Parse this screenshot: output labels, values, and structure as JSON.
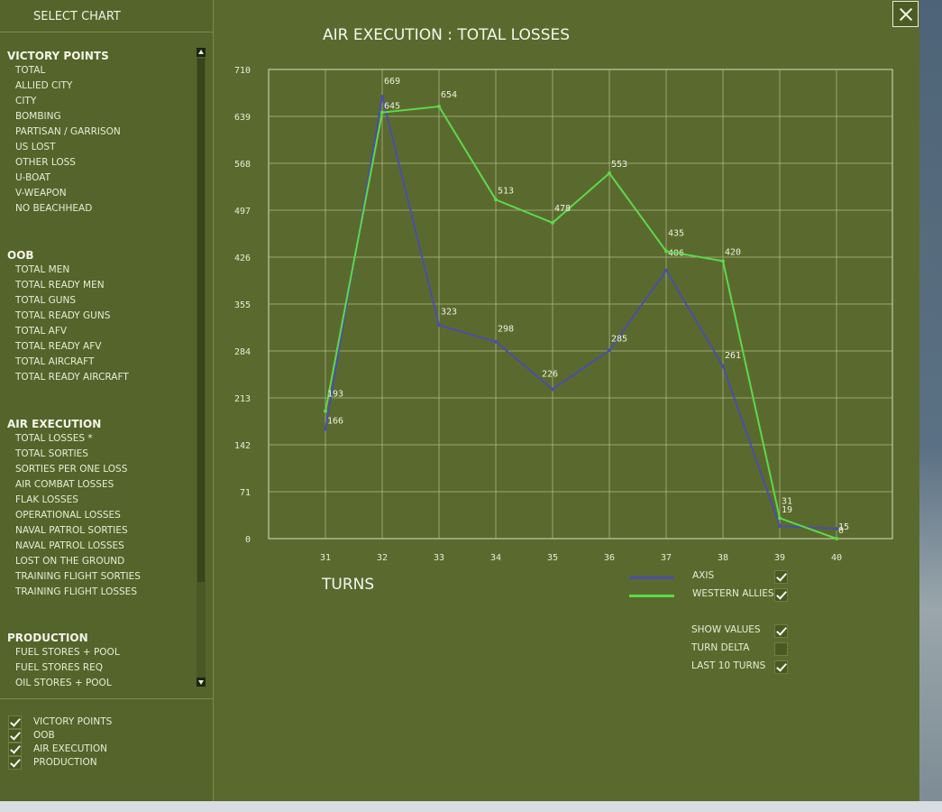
{
  "sidebar": {
    "title": "SELECT CHART",
    "sections": [
      {
        "heading": "VICTORY POINTS",
        "items": [
          "TOTAL",
          "ALLIED CITY",
          "CITY",
          "BOMBING",
          "PARTISAN / GARRISON",
          "US LOST",
          "OTHER LOSS",
          "U-BOAT",
          "V-WEAPON",
          "NO BEACHHEAD"
        ]
      },
      {
        "heading": "OOB",
        "items": [
          "TOTAL MEN",
          "TOTAL READY MEN",
          "TOTAL GUNS",
          "TOTAL READY GUNS",
          "TOTAL AFV",
          "TOTAL READY AFV",
          "TOTAL AIRCRAFT",
          "TOTAL READY AIRCRAFT"
        ]
      },
      {
        "heading": "AIR EXECUTION",
        "items": [
          "TOTAL LOSSES *",
          "TOTAL SORTIES",
          "SORTIES PER ONE LOSS",
          "AIR COMBAT LOSSES",
          "FLAK LOSSES",
          "OPERATIONAL LOSSES",
          "NAVAL PATROL SORTIES",
          "NAVAL PATROL LOSSES",
          "LOST ON THE GROUND",
          "TRAINING FLIGHT SORTIES",
          "TRAINING FLIGHT LOSSES"
        ]
      },
      {
        "heading": "PRODUCTION",
        "items": [
          "FUEL STORES + POOL",
          "FUEL STORES REQ",
          "OIL STORES + POOL"
        ]
      }
    ],
    "filters": [
      {
        "label": "VICTORY POINTS",
        "checked": true
      },
      {
        "label": "OOB",
        "checked": true
      },
      {
        "label": "AIR EXECUTION",
        "checked": true
      },
      {
        "label": "PRODUCTION",
        "checked": true
      }
    ]
  },
  "chart_data": {
    "type": "line",
    "title": "AIR EXECUTION : TOTAL LOSSES",
    "xlabel": "TURNS",
    "ylabel": "",
    "x": [
      31,
      32,
      33,
      34,
      35,
      36,
      37,
      38,
      39,
      40
    ],
    "yticks": [
      0,
      71,
      142,
      213,
      284,
      355,
      426,
      497,
      568,
      639,
      710
    ],
    "ylim": [
      0,
      710
    ],
    "grid": true,
    "series": [
      {
        "name": "AXIS",
        "color": "#4a4fa6",
        "values": [
          166,
          669,
          323,
          298,
          226,
          285,
          406,
          261,
          19,
          15
        ]
      },
      {
        "name": "WESTERN ALLIES",
        "color": "#5ed84a",
        "values": [
          193,
          645,
          654,
          513,
          478,
          553,
          435,
          420,
          31,
          0
        ]
      }
    ]
  },
  "options": [
    {
      "label": "SHOW VALUES",
      "checked": true
    },
    {
      "label": "TURN DELTA",
      "checked": false
    },
    {
      "label": "LAST 10 TURNS",
      "checked": true
    }
  ],
  "colors": {
    "panel": "#5a6a2e",
    "grid": "#b7c08c",
    "axis_series": "#4a4fa6",
    "allies_series": "#5ed84a"
  },
  "icons": {
    "close": "close-icon",
    "scroll_up": "arrow-up-icon",
    "scroll_down": "arrow-down-icon"
  }
}
